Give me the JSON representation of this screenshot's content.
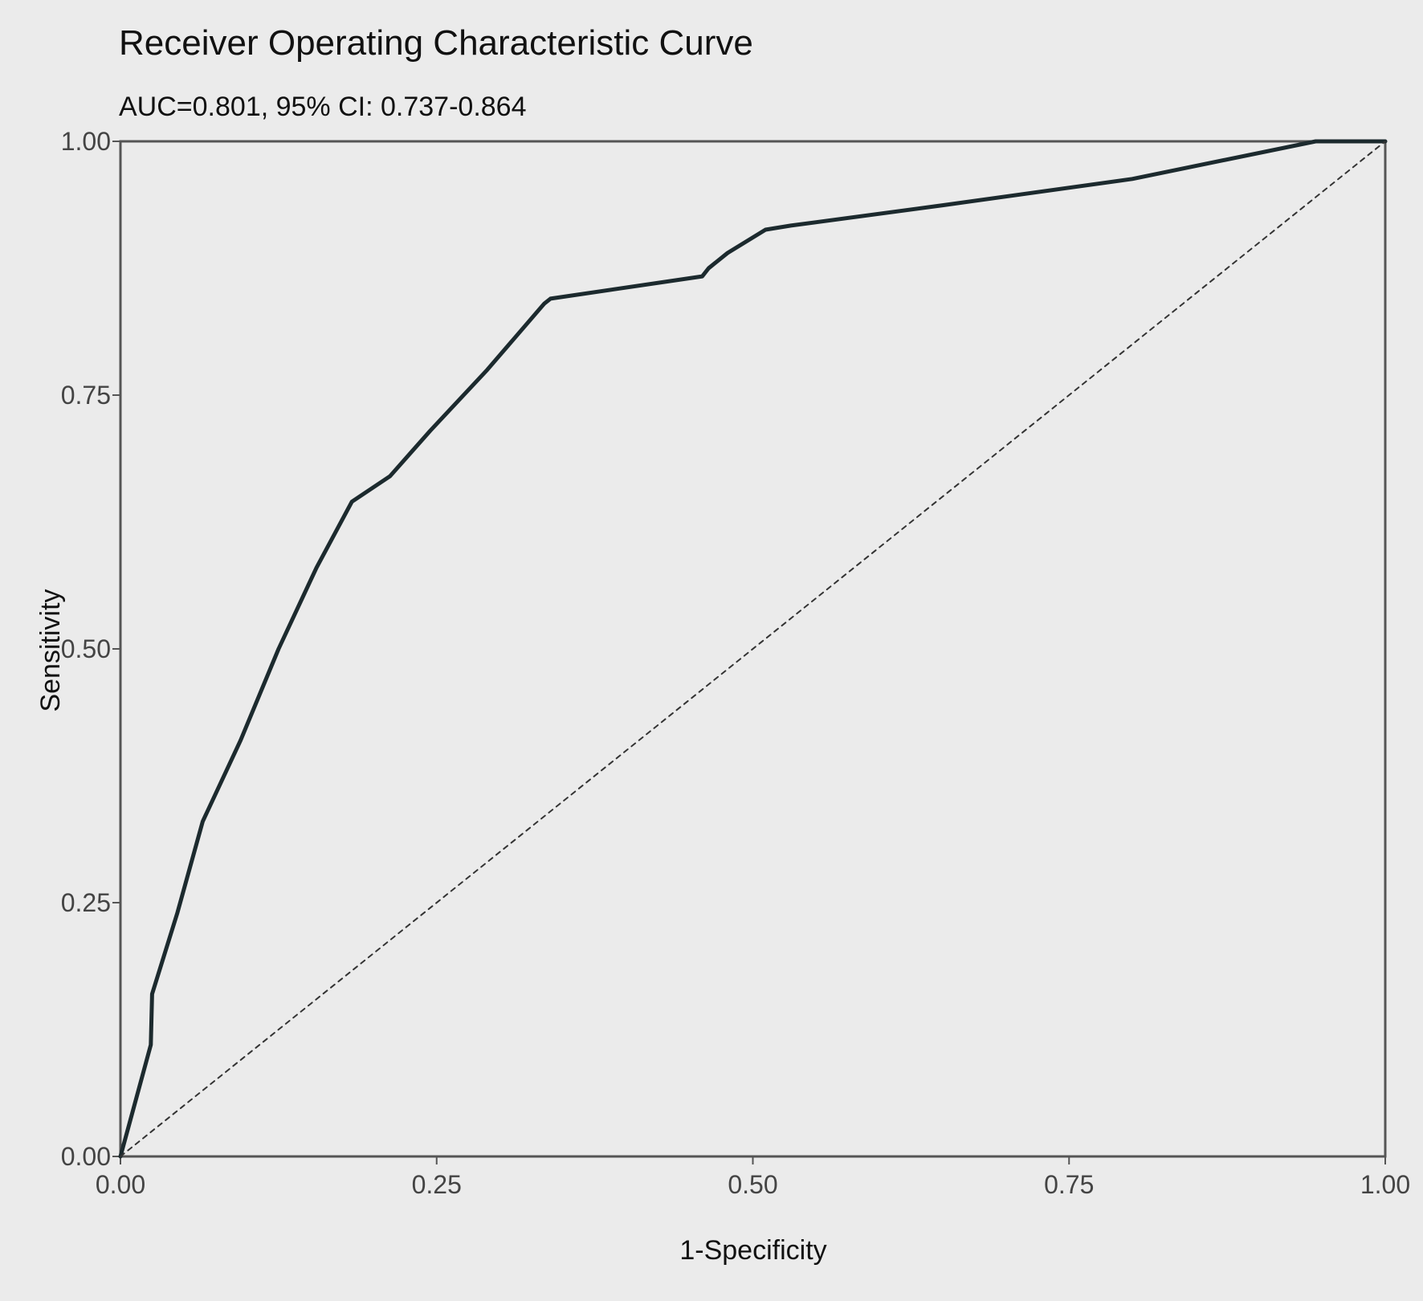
{
  "chart_data": {
    "type": "line",
    "title": "Receiver Operating Characteristic Curve",
    "subtitle": "AUC=0.801, 95% CI: 0.737-0.864",
    "xlabel": "1-Specificity",
    "ylabel": "Sensitivity",
    "xlim": [
      0,
      1
    ],
    "ylim": [
      0,
      1
    ],
    "x_ticks": [
      "0.00",
      "0.25",
      "0.50",
      "0.75",
      "1.00"
    ],
    "y_ticks": [
      "0.00",
      "0.25",
      "0.50",
      "0.75",
      "1.00"
    ],
    "grid": false,
    "series": [
      {
        "style": "solid",
        "color": "#1c2a2e",
        "x": [
          0.0,
          0.024,
          0.025,
          0.045,
          0.065,
          0.095,
          0.125,
          0.155,
          0.183,
          0.213,
          0.245,
          0.29,
          0.335,
          0.34,
          0.46,
          0.465,
          0.48,
          0.51,
          0.53,
          0.65,
          0.8,
          0.945,
          1.0
        ],
        "y": [
          0.0,
          0.11,
          0.16,
          0.24,
          0.33,
          0.41,
          0.5,
          0.58,
          0.645,
          0.67,
          0.715,
          0.775,
          0.84,
          0.845,
          0.867,
          0.875,
          0.89,
          0.913,
          0.917,
          0.937,
          0.963,
          1.0,
          1.0
        ]
      },
      {
        "style": "dashed",
        "color": "#333333",
        "x": [
          0.0,
          1.0
        ],
        "y": [
          0.0,
          1.0
        ]
      }
    ]
  }
}
